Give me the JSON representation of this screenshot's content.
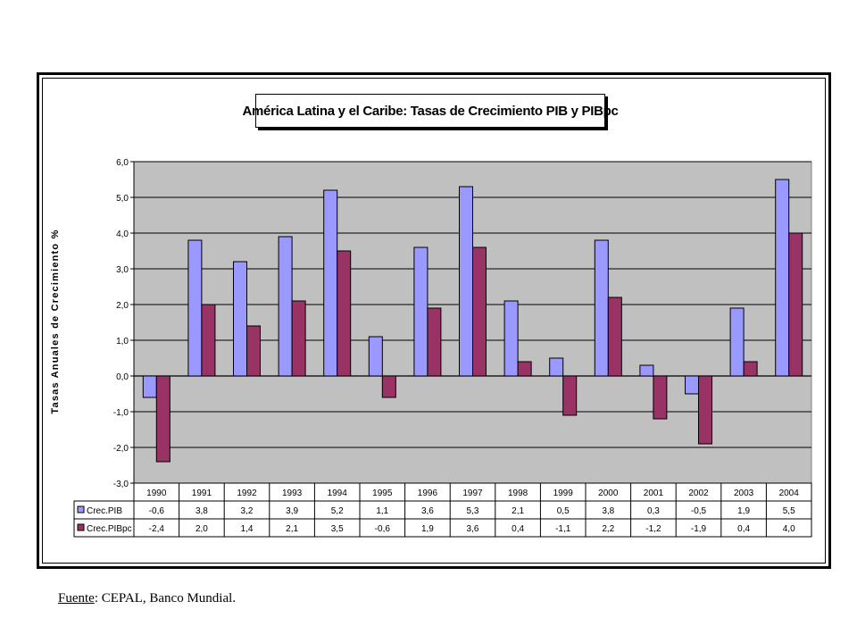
{
  "footer": {
    "source_label": "Fuente",
    "source_text": ": CEPAL, Banco Mundial."
  },
  "chart_data": {
    "type": "bar",
    "title": "América Latina y el Caribe: Tasas de Crecimiento PIB y PIBpc",
    "xlabel": "",
    "ylabel": "Tasas Anuales de Crecimiento %",
    "ylim": [
      -3.0,
      6.0
    ],
    "yticks": [
      "6,0",
      "5,0",
      "4,0",
      "3,0",
      "2,0",
      "1,0",
      "0,0",
      "-1,0",
      "-2,0",
      "-3,0"
    ],
    "ytick_values": [
      6,
      5,
      4,
      3,
      2,
      1,
      0,
      -1,
      -2,
      -3
    ],
    "grid": true,
    "legend": "data-table",
    "categories": [
      "1990",
      "1991",
      "1992",
      "1993",
      "1994",
      "1995",
      "1996",
      "1997",
      "1998",
      "1999",
      "2000",
      "2001",
      "2002",
      "2003",
      "2004"
    ],
    "series": [
      {
        "name": "Crec.PIB",
        "color": "#9999ff",
        "values": [
          -0.6,
          3.8,
          3.2,
          3.9,
          5.2,
          1.1,
          3.6,
          5.3,
          2.1,
          0.5,
          3.8,
          0.3,
          -0.5,
          1.9,
          5.5
        ],
        "labels": [
          "-0,6",
          "3,8",
          "3,2",
          "3,9",
          "5,2",
          "1,1",
          "3,6",
          "5,3",
          "2,1",
          "0,5",
          "3,8",
          "0,3",
          "-0,5",
          "1,9",
          "5,5"
        ]
      },
      {
        "name": "Crec.PIBpc",
        "color": "#993366",
        "values": [
          -2.4,
          2.0,
          1.4,
          2.1,
          3.5,
          -0.6,
          1.9,
          3.6,
          0.4,
          -1.1,
          2.2,
          -1.2,
          -1.9,
          0.4,
          4.0
        ],
        "labels": [
          "-2,4",
          "2,0",
          "1,4",
          "2,1",
          "3,5",
          "-0,6",
          "1,9",
          "3,6",
          "0,4",
          "-1,1",
          "2,2",
          "-1,2",
          "-1,9",
          "0,4",
          "4,0"
        ]
      }
    ],
    "colors": {
      "plot_area": "#c0c0c0",
      "gridline": "#000000"
    }
  }
}
